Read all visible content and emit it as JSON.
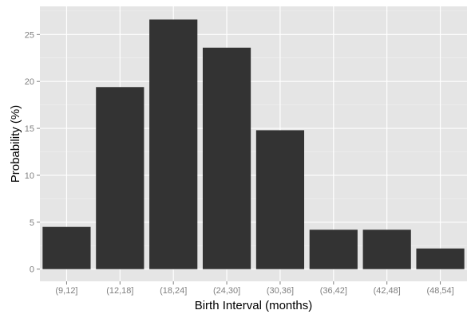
{
  "chart_data": {
    "type": "bar",
    "title": "",
    "xlabel": "Birth Interval (months)",
    "ylabel": "Probability (%)",
    "categories": [
      "(9,12]",
      "(12,18]",
      "(18,24]",
      "(24,30]",
      "(30,36]",
      "(36,42]",
      "(42,48]",
      "(48,54]"
    ],
    "values": [
      4.5,
      19.4,
      26.6,
      23.6,
      14.8,
      4.2,
      4.2,
      2.2
    ],
    "ylim": [
      -1.3,
      28
    ],
    "yticks": [
      0,
      5,
      10,
      15,
      20,
      25
    ],
    "ytick_labels": [
      "0",
      "5",
      "10",
      "15",
      "20",
      "25"
    ],
    "grid": true,
    "colors": {
      "panel": "#e5e5e5",
      "grid_major": "#ffffff",
      "grid_minor": "#f2f2f2",
      "bar": "#333333",
      "tick_text": "#7f7f7f"
    }
  }
}
